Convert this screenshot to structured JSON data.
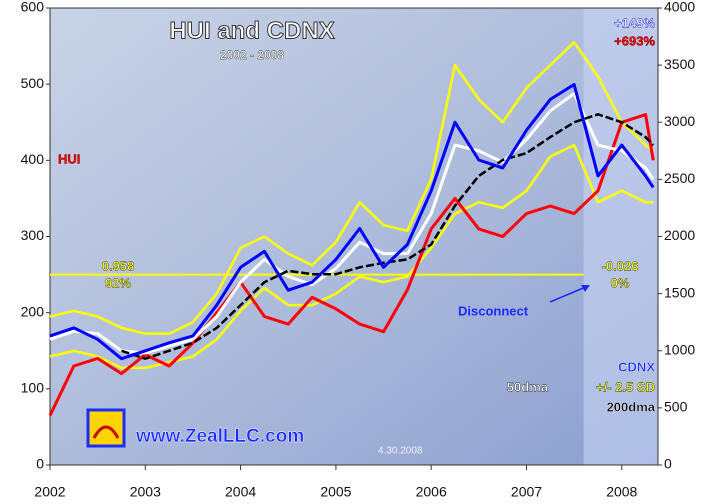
{
  "chart_data": {
    "type": "line",
    "title": "HUI and CDNX",
    "subtitle": "2002 - 2008",
    "x": [
      2002.0,
      2002.25,
      2002.5,
      2002.75,
      2003.0,
      2003.25,
      2003.5,
      2003.75,
      2004.0,
      2004.25,
      2004.5,
      2004.75,
      2005.0,
      2005.25,
      2005.5,
      2005.75,
      2006.0,
      2006.25,
      2006.5,
      2006.75,
      2007.0,
      2007.25,
      2007.5,
      2007.75,
      2008.0,
      2008.25,
      2008.33
    ],
    "series": [
      {
        "name": "HUI",
        "color": "#ff0000",
        "values": [
          65,
          130,
          140,
          120,
          145,
          130,
          160,
          200,
          240,
          195,
          185,
          220,
          205,
          185,
          175,
          230,
          310,
          350,
          310,
          300,
          330,
          340,
          330,
          360,
          450,
          460,
          400
        ]
      },
      {
        "name": "50dma",
        "color": "#ffffff",
        "axis": "y2",
        "values": [
          1100,
          1170,
          1150,
          1000,
          980,
          1040,
          1100,
          1300,
          1600,
          1800,
          1650,
          1580,
          1720,
          1950,
          1850,
          1850,
          2200,
          2800,
          2750,
          2650,
          2850,
          3100,
          3250,
          2800,
          2750,
          2600,
          2500
        ]
      },
      {
        "name": "200dma",
        "color": "#000000",
        "axis": "y2",
        "values": [
          null,
          null,
          null,
          1000,
          930,
          1000,
          1070,
          1200,
          1400,
          1600,
          1700,
          1670,
          1670,
          1730,
          1770,
          1800,
          1930,
          2270,
          2530,
          2670,
          2730,
          2870,
          3000,
          3070,
          3000,
          2870,
          2800
        ]
      },
      {
        "name": "CDNX",
        "color": "#0000ff",
        "axis": "y2",
        "values": [
          1130,
          1200,
          1100,
          930,
          1000,
          1070,
          1130,
          1400,
          1730,
          1870,
          1530,
          1600,
          1800,
          2070,
          1730,
          1930,
          2400,
          3000,
          2670,
          2600,
          2930,
          3200,
          3330,
          2530,
          2800,
          2530,
          2430
        ]
      }
    ],
    "band": {
      "name": "+/- 2.5 SD",
      "color": "#ffff00",
      "axis": "y2",
      "upper": [
        1300,
        1350,
        1300,
        1200,
        1150,
        1150,
        1250,
        1500,
        1900,
        2000,
        1850,
        1750,
        1950,
        2300,
        2100,
        2050,
        2500,
        3500,
        3200,
        3000,
        3300,
        3500,
        3700,
        3400,
        3000,
        2800,
        2750
      ],
      "lower": [
        950,
        1000,
        950,
        850,
        850,
        900,
        950,
        1100,
        1350,
        1550,
        1400,
        1400,
        1500,
        1650,
        1600,
        1650,
        1900,
        2200,
        2300,
        2250,
        2400,
        2700,
        2800,
        2300,
        2400,
        2300,
        2300
      ]
    },
    "reference_line": {
      "value": 250,
      "x": [
        2002.0,
        2007.6
      ],
      "color": "#ffff00"
    },
    "highlight_x": [
      2007.6,
      2008.38
    ],
    "xlim": [
      2002.0,
      2008.38
    ],
    "xticks": [
      2002,
      2003,
      2004,
      2005,
      2006,
      2007,
      2008
    ],
    "ylim": [
      0,
      600
    ],
    "yticks": [
      0,
      100,
      200,
      300,
      400,
      500,
      600
    ],
    "y2lim": [
      0,
      4000
    ],
    "y2ticks": [
      0,
      500,
      1000,
      1500,
      2000,
      2500,
      3000,
      3500,
      4000
    ],
    "annotations": {
      "hui_label": "HUI",
      "corr_left": "0.958",
      "r2_left": "92%",
      "corr_right": "-0.026",
      "r2_right": "0%",
      "cdnx_gain": "+149%",
      "hui_gain": "+693%",
      "disconnect": "Disconnect",
      "website": "www.ZealLLC.com",
      "date": "4.30.2008"
    }
  }
}
